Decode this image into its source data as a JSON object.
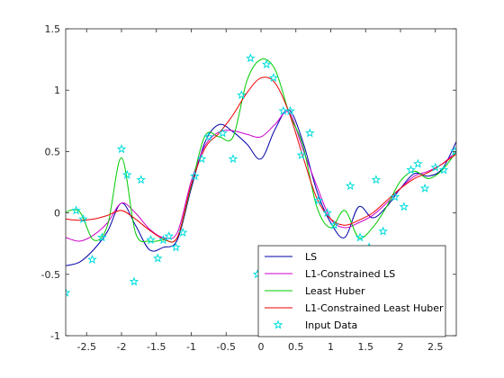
{
  "chart_data": {
    "type": "line",
    "title": "",
    "xlabel": "",
    "ylabel": "",
    "xlim": [
      -2.8,
      2.8
    ],
    "ylim": [
      -1,
      1.5
    ],
    "xticks": [
      -2.5,
      -2,
      -1.5,
      -1,
      -0.5,
      0,
      0.5,
      1,
      1.5,
      2,
      2.5
    ],
    "yticks": [
      -1,
      -0.5,
      0,
      0.5,
      1,
      1.5
    ],
    "xtick_labels": [
      "-2.5",
      "-2",
      "-1.5",
      "-1",
      "-0.5",
      "0",
      "0.5",
      "1",
      "1.5",
      "2",
      "2.5"
    ],
    "ytick_labels": [
      "-1",
      "-0.5",
      "0",
      "0.5",
      "1",
      "1.5"
    ],
    "grid": false,
    "legend_position": "bottom-right",
    "x": [
      -2.8,
      -2.6,
      -2.4,
      -2.2,
      -2.0,
      -1.8,
      -1.6,
      -1.4,
      -1.2,
      -1.0,
      -0.8,
      -0.6,
      -0.4,
      -0.2,
      0.0,
      0.2,
      0.4,
      0.6,
      0.8,
      1.0,
      1.2,
      1.4,
      1.6,
      1.8,
      2.0,
      2.2,
      2.4,
      2.6,
      2.8
    ],
    "series": [
      {
        "name": "LS",
        "color": "#0000aa",
        "values": [
          -0.43,
          -0.4,
          -0.3,
          -0.15,
          0.08,
          -0.1,
          -0.3,
          -0.28,
          -0.22,
          0.2,
          0.58,
          0.72,
          0.66,
          0.56,
          0.44,
          0.68,
          0.84,
          0.58,
          0.18,
          -0.08,
          -0.2,
          0.05,
          -0.04,
          0.05,
          0.2,
          0.32,
          0.3,
          0.36,
          0.58
        ]
      },
      {
        "name": "L1-Constrained LS",
        "color": "#cc00cc",
        "values": [
          -0.2,
          -0.23,
          -0.18,
          -0.08,
          0.08,
          0.0,
          -0.13,
          -0.2,
          -0.16,
          0.26,
          0.55,
          0.66,
          0.67,
          0.64,
          0.62,
          0.72,
          0.82,
          0.52,
          0.22,
          -0.05,
          -0.12,
          -0.08,
          -0.02,
          0.08,
          0.2,
          0.3,
          0.34,
          0.4,
          0.5
        ]
      },
      {
        "name": "Least Huber",
        "color": "#00cc00",
        "values": [
          0.01,
          0.01,
          -0.22,
          -0.1,
          0.45,
          -0.16,
          -0.23,
          -0.22,
          -0.2,
          0.22,
          0.63,
          0.62,
          0.62,
          1.08,
          1.25,
          1.17,
          0.82,
          0.55,
          0.05,
          -0.12,
          0.02,
          -0.2,
          -0.12,
          0.05,
          0.26,
          0.34,
          0.28,
          0.35,
          0.5
        ]
      },
      {
        "name": "L1-Constrained Least Huber",
        "color": "#ee0000",
        "values": [
          -0.05,
          -0.06,
          -0.05,
          -0.02,
          0.02,
          -0.05,
          -0.14,
          -0.21,
          -0.2,
          0.23,
          0.53,
          0.65,
          0.8,
          0.98,
          1.1,
          1.06,
          0.82,
          0.46,
          0.12,
          -0.05,
          -0.1,
          -0.06,
          0.0,
          0.1,
          0.2,
          0.28,
          0.33,
          0.4,
          0.48
        ]
      }
    ],
    "scatter": {
      "name": "Input Data",
      "color": "#00dddd",
      "marker": "pentagram",
      "points": [
        [
          -2.8,
          -0.65
        ],
        [
          -2.65,
          0.02
        ],
        [
          -2.55,
          -0.05
        ],
        [
          -2.42,
          -0.38
        ],
        [
          -2.28,
          -0.2
        ],
        [
          -2.0,
          0.52
        ],
        [
          -1.92,
          0.31
        ],
        [
          -1.82,
          -0.56
        ],
        [
          -1.72,
          0.27
        ],
        [
          -1.58,
          -0.22
        ],
        [
          -1.48,
          -0.37
        ],
        [
          -1.4,
          -0.22
        ],
        [
          -1.32,
          -0.19
        ],
        [
          -1.22,
          -0.28
        ],
        [
          -1.12,
          -0.16
        ],
        [
          -0.95,
          0.3
        ],
        [
          -0.85,
          0.44
        ],
        [
          -0.75,
          0.62
        ],
        [
          -0.55,
          0.65
        ],
        [
          -0.4,
          0.44
        ],
        [
          -0.28,
          0.96
        ],
        [
          -0.15,
          1.26
        ],
        [
          -0.05,
          -0.5
        ],
        [
          0.08,
          1.21
        ],
        [
          0.18,
          1.1
        ],
        [
          0.32,
          0.83
        ],
        [
          0.42,
          0.83
        ],
        [
          0.58,
          0.47
        ],
        [
          0.7,
          0.65
        ],
        [
          0.82,
          0.1
        ],
        [
          0.95,
          0.0
        ],
        [
          1.05,
          -0.1
        ],
        [
          1.28,
          0.22
        ],
        [
          1.42,
          -0.2
        ],
        [
          1.55,
          -0.28
        ],
        [
          1.65,
          0.27
        ],
        [
          1.75,
          -0.15
        ],
        [
          1.92,
          0.13
        ],
        [
          2.05,
          0.05
        ],
        [
          2.15,
          0.35
        ],
        [
          2.25,
          0.4
        ],
        [
          2.35,
          0.2
        ],
        [
          2.5,
          0.37
        ],
        [
          2.62,
          0.35
        ],
        [
          2.78,
          0.5
        ]
      ]
    }
  }
}
